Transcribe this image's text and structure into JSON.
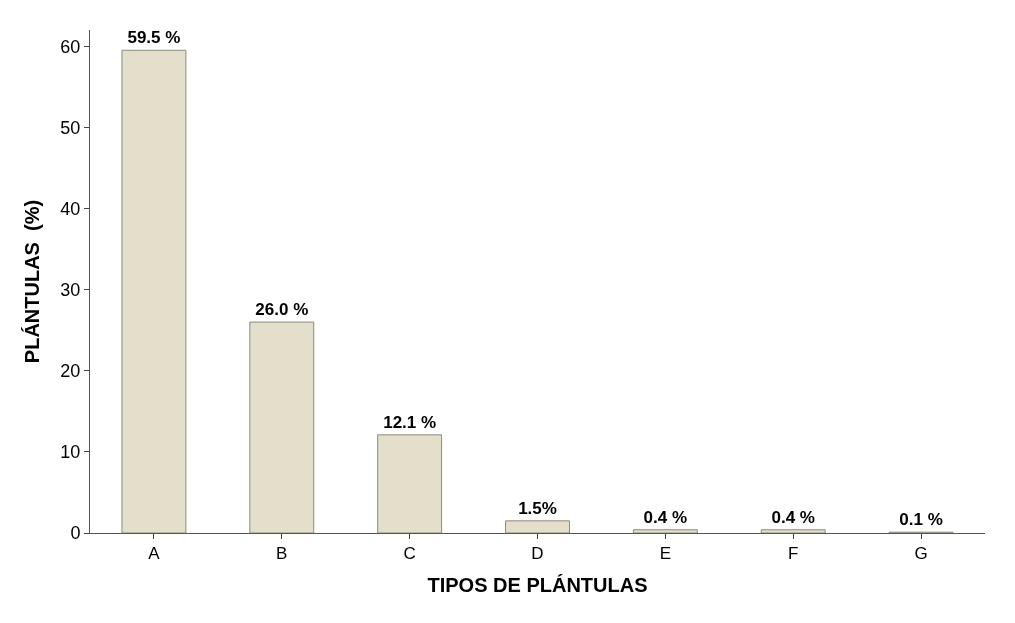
{
  "chart_data": {
    "type": "bar",
    "xlabel": "TIPOS DE PLÁNTULAS",
    "ylabel": "PLÁNTULAS  (%)",
    "categories": [
      "A",
      "B",
      "C",
      "D",
      "E",
      "F",
      "G"
    ],
    "values": [
      59.5,
      26.0,
      12.1,
      1.5,
      0.4,
      0.4,
      0.1
    ],
    "value_labels": [
      "59.5 %",
      "26.0 %",
      "12.1 %",
      "1.5%",
      "0.4 %",
      "0.4 %",
      "0.1 %"
    ],
    "color": "#e4dfca",
    "ylim": [
      0,
      62
    ],
    "yticks": [
      0,
      10,
      20,
      30,
      40,
      50,
      60
    ],
    "legend": false
  }
}
